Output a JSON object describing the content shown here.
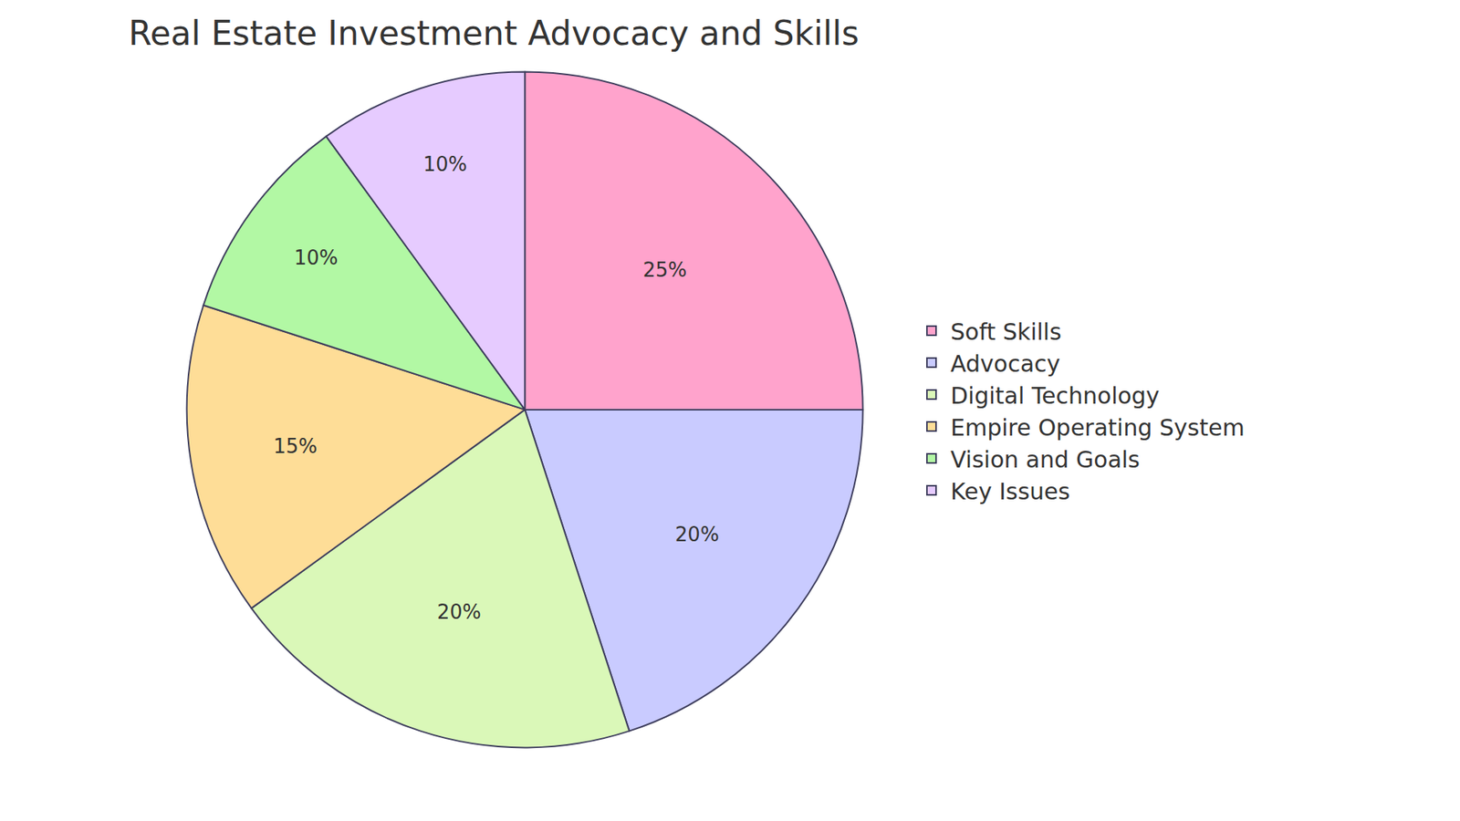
{
  "chart_data": {
    "type": "pie",
    "title": "Real Estate Investment Advocacy and Skills",
    "categories": [
      "Soft Skills",
      "Advocacy",
      "Digital Technology",
      "Empire Operating System",
      "Vision and Goals",
      "Key Issues"
    ],
    "values": [
      25,
      20,
      20,
      15,
      10,
      10
    ],
    "value_labels": [
      "25%",
      "20%",
      "20%",
      "15%",
      "10%",
      "10%"
    ],
    "colors": [
      "#ffa3cc",
      "#c9cbff",
      "#daf8b8",
      "#fedd97",
      "#b2f8a4",
      "#e6cbff"
    ],
    "data_labels": true,
    "legend": "right"
  }
}
